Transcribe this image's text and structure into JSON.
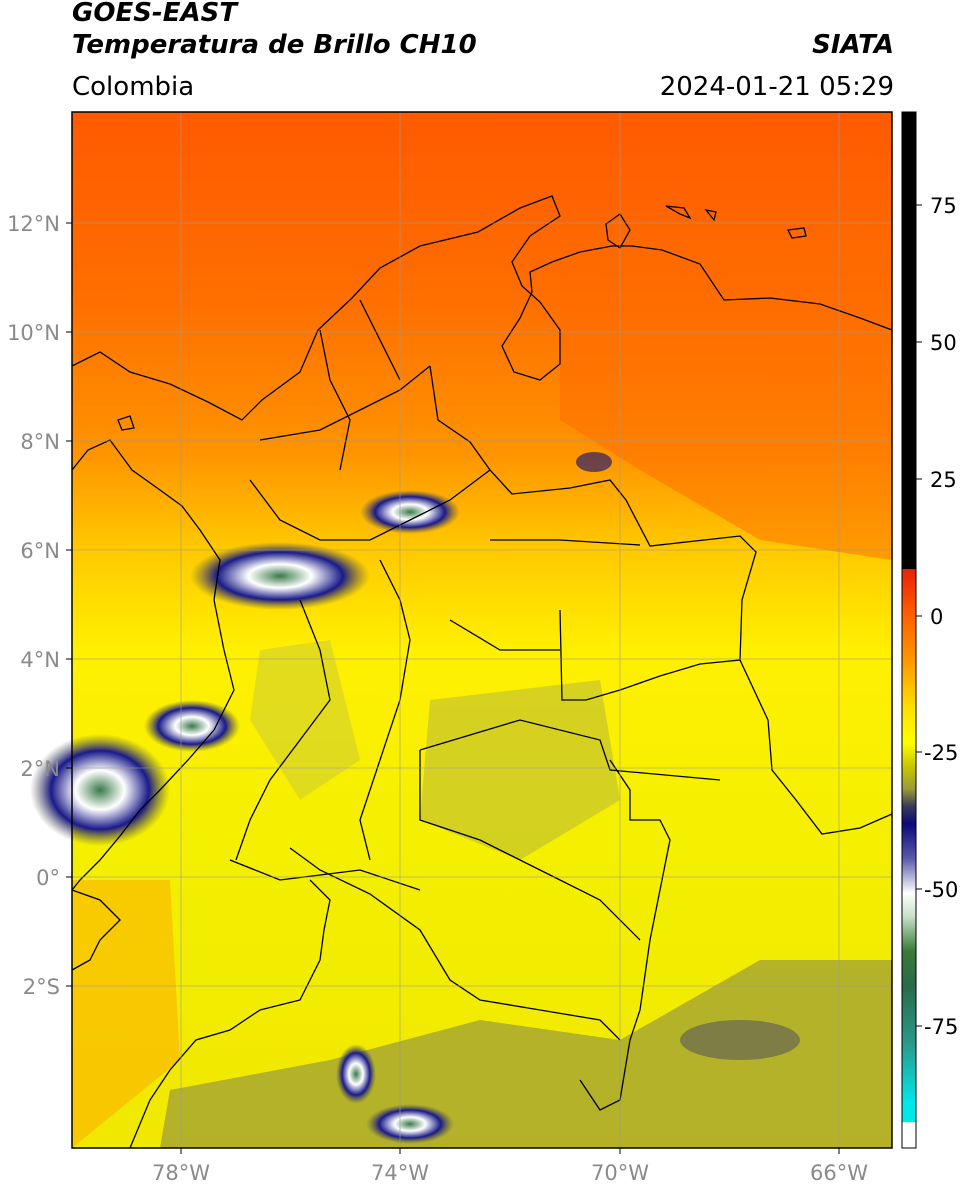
{
  "header": {
    "satellite": "GOES-EAST",
    "product": "Temperatura de Brillo CH10",
    "region": "Colombia",
    "agency": "SIATA",
    "datetime": "2024-01-21 05:29"
  },
  "map": {
    "lat_labels": [
      "12°N",
      "10°N",
      "8°N",
      "6°N",
      "4°N",
      "2°N",
      "0°",
      "2°S"
    ],
    "lon_labels": [
      "78°W",
      "74°W",
      "70°W",
      "66°W"
    ]
  },
  "colorbar": {
    "tick_labels": [
      "75",
      "50",
      "25",
      "0",
      "-25",
      "-50",
      "-75"
    ],
    "colors": {
      "black": "#000000",
      "red": "#e8200a",
      "orange": "#ff8a00",
      "yellow": "#ffff00",
      "olive": "#9a9a3a",
      "navy": "#0a0a7a",
      "white": "#ffffff",
      "green": "#3a7a3a",
      "teal": "#2a9a8a",
      "cyan": "#00e8e8"
    }
  }
}
